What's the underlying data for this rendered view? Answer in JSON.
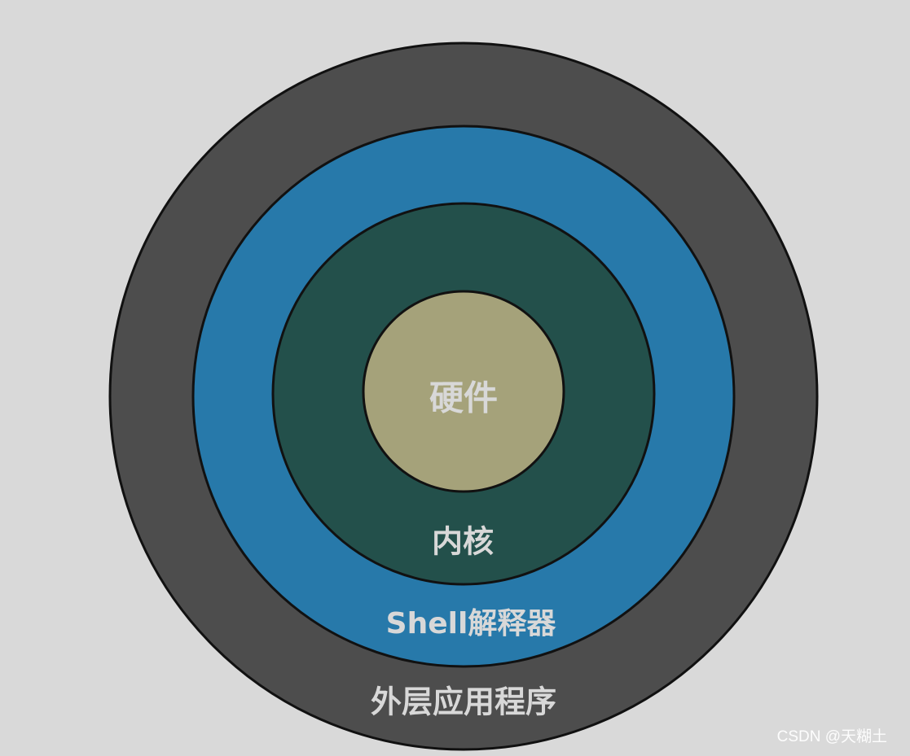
{
  "diagram": {
    "layers": [
      {
        "key": "outer_apps",
        "label": "外层应用程序",
        "color": "#4d4d4d"
      },
      {
        "key": "shell",
        "label": "Shell解释器",
        "color": "#2779aa"
      },
      {
        "key": "kernel",
        "label": "内核",
        "color": "#23504b"
      },
      {
        "key": "hardware",
        "label": "硬件",
        "color": "#a5a27a"
      }
    ]
  },
  "watermark": "CSDN @天糊土"
}
